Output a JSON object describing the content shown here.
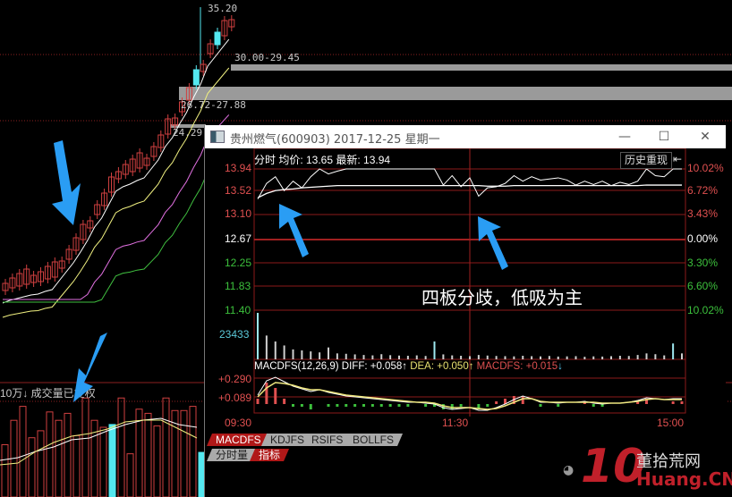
{
  "background_chart": {
    "high_label": "35.20",
    "zone1_label": "30.00-29.45",
    "zone2_label": "26.72-27.88",
    "zone3_label": "24.29-",
    "volume_label": "10万↓  成交量已复权"
  },
  "window": {
    "title": "贵州燃气(600903) 2017-12-25 星期一",
    "minimize": "—",
    "maximize": "☐",
    "close": "✕"
  },
  "intraday": {
    "header": "分时 均价: 13.65 最新: 13.94",
    "history_replay": "历史重现",
    "history_icon": "⇤",
    "price_labels": [
      "13.94",
      "13.52",
      "13.10",
      "12.67",
      "12.25",
      "11.83",
      "11.40"
    ],
    "pct_labels": [
      "10.02%",
      "6.72%",
      "3.43%",
      "0.00%",
      "3.30%",
      "6.60%",
      "10.02%"
    ],
    "volume_label": "23433",
    "price": [
      13.4,
      13.68,
      13.8,
      13.55,
      13.72,
      13.6,
      13.8,
      13.94,
      13.85,
      13.9,
      13.94,
      13.94,
      13.94,
      13.94,
      13.94,
      13.94,
      13.94,
      13.94,
      13.94,
      13.94,
      13.94,
      13.65,
      13.82,
      13.62,
      13.78,
      13.45,
      13.6,
      13.62,
      13.68,
      13.82,
      13.72,
      13.8,
      13.74,
      13.76,
      13.78,
      13.74,
      13.65,
      13.72,
      13.66,
      13.72,
      13.64,
      13.7,
      13.66,
      13.72,
      13.94,
      13.82,
      13.8,
      13.94,
      13.94
    ],
    "avg_price": [
      13.42,
      13.5,
      13.55,
      13.57,
      13.58,
      13.6,
      13.61,
      13.62,
      13.63,
      13.64,
      13.64,
      13.64,
      13.64,
      13.64,
      13.64,
      13.64,
      13.64,
      13.64,
      13.64,
      13.64,
      13.64,
      13.64,
      13.64,
      13.64,
      13.64,
      13.64,
      13.63,
      13.63,
      13.63,
      13.64,
      13.64,
      13.64,
      13.64,
      13.64,
      13.64,
      13.64,
      13.64,
      13.64,
      13.64,
      13.64,
      13.64,
      13.64,
      13.64,
      13.64,
      13.65,
      13.65,
      13.65,
      13.65,
      13.65
    ],
    "volume": [
      23433,
      12000,
      9000,
      7000,
      5000,
      4500,
      4000,
      3500,
      6000,
      3000,
      2800,
      2500,
      2200,
      2000,
      2600,
      2100,
      1900,
      1800,
      2000,
      1700,
      9000,
      2500,
      2000,
      1800,
      1600,
      2200,
      1900,
      1700,
      1600,
      1500,
      1800,
      1600,
      1500,
      1700,
      1400,
      1500,
      1600,
      1300,
      1500,
      1400,
      1600,
      1800,
      1700,
      2200,
      3000,
      2600,
      2000,
      8000,
      3000
    ],
    "time_labels": [
      "09:30",
      "11:30",
      "15:00"
    ]
  },
  "macd": {
    "title": "MACDFS(12,26,9)",
    "diff": "DIFF: +0.058↑",
    "dea": "DEA: +0.050↑",
    "macdfs": "MACDFS: +0.015",
    "macdfs_arrow": "↓",
    "labels": [
      "+0.290",
      "+0.089"
    ],
    "diff_series": [
      0.1,
      0.26,
      0.3,
      0.25,
      0.2,
      0.17,
      0.14,
      0.16,
      0.13,
      0.11,
      0.09,
      0.08,
      0.07,
      0.06,
      0.05,
      0.04,
      0.03,
      0.02,
      0.02,
      0.01,
      0.0,
      -0.04,
      -0.06,
      -0.05,
      -0.04,
      -0.07,
      -0.07,
      -0.04,
      0.0,
      0.05,
      0.09,
      0.06,
      0.02,
      0.02,
      0.01,
      0.02,
      0.02,
      0.03,
      0.01,
      0.0,
      0.01,
      0.01,
      0.02,
      0.04,
      0.07,
      0.06,
      0.05,
      0.06,
      0.06
    ],
    "dea_series": [
      0.08,
      0.18,
      0.24,
      0.23,
      0.21,
      0.18,
      0.16,
      0.16,
      0.14,
      0.12,
      0.1,
      0.09,
      0.08,
      0.07,
      0.06,
      0.05,
      0.04,
      0.03,
      0.02,
      0.02,
      0.01,
      -0.02,
      -0.04,
      -0.04,
      -0.04,
      -0.05,
      -0.06,
      -0.05,
      -0.02,
      0.02,
      0.06,
      0.06,
      0.03,
      0.02,
      0.02,
      0.02,
      0.02,
      0.02,
      0.02,
      0.01,
      0.01,
      0.01,
      0.02,
      0.03,
      0.05,
      0.06,
      0.05,
      0.05,
      0.05
    ]
  },
  "tabs": [
    "MACDFS",
    "KDJFS",
    "RSIFS",
    "BOLLFS"
  ],
  "subtabs": [
    "分时量",
    "指标"
  ],
  "annotation": "四板分歧，低吸为主",
  "watermark": {
    "number": "10",
    "cn": "董拾荒网",
    "en": "Huang.CN"
  },
  "colors": {
    "up": "#e05050",
    "down": "#3cc03c",
    "cyan": "#54e8f0",
    "arrow": "#2a9df4",
    "grid": "#8b1a1a"
  }
}
